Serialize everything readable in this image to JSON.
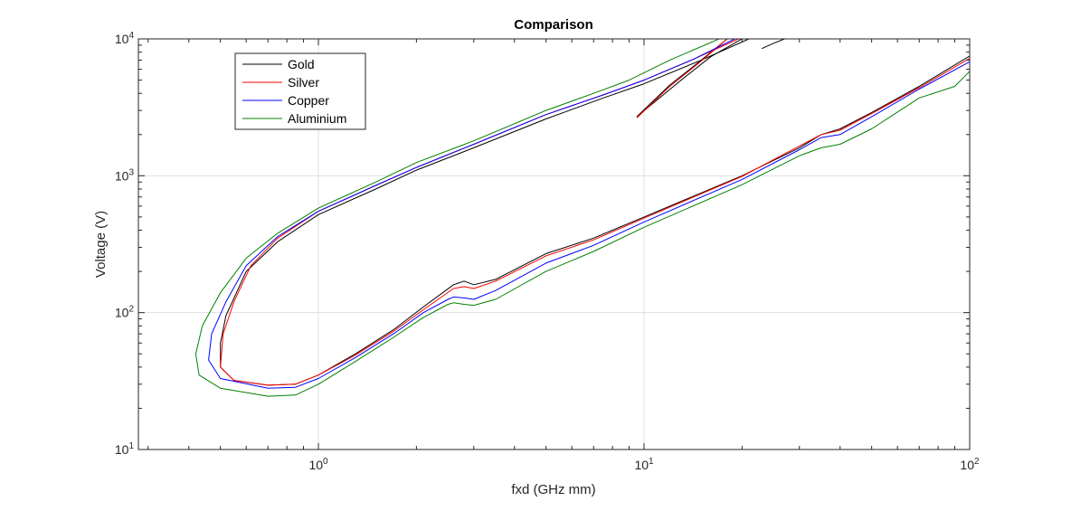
{
  "chart_data": {
    "type": "line",
    "title": "Comparison",
    "xlabel": "fxd (GHz mm)",
    "ylabel": "Voltage (V)",
    "xscale": "log",
    "yscale": "log",
    "xlim": [
      0.28,
      100
    ],
    "ylim": [
      10,
      10000
    ],
    "grid": true,
    "legend_position": "top-left",
    "x_ticks": [
      {
        "value": 1,
        "base": "10",
        "exp": "0"
      },
      {
        "value": 10,
        "base": "10",
        "exp": "1"
      },
      {
        "value": 100,
        "base": "10",
        "exp": "2"
      }
    ],
    "y_ticks": [
      {
        "value": 10,
        "base": "10",
        "exp": "1"
      },
      {
        "value": 100,
        "base": "10",
        "exp": "2"
      },
      {
        "value": 1000,
        "base": "10",
        "exp": "3"
      },
      {
        "value": 10000,
        "base": "10",
        "exp": "4"
      }
    ],
    "series": [
      {
        "name": "Gold",
        "color": "#000000",
        "segments": [
          [
            [
              21,
              10000
            ],
            [
              15,
              7000
            ],
            [
              10,
              4700
            ],
            [
              7.5,
              3700
            ],
            [
              5,
              2600
            ],
            [
              3,
              1600
            ],
            [
              2,
              1100
            ],
            [
              1.5,
              800
            ],
            [
              1,
              520
            ],
            [
              0.75,
              330
            ],
            [
              0.6,
              200
            ],
            [
              0.52,
              95
            ],
            [
              0.5,
              60
            ],
            [
              0.5,
              40
            ],
            [
              0.55,
              32
            ],
            [
              0.7,
              29.5
            ],
            [
              0.85,
              30
            ],
            [
              1,
              35
            ],
            [
              1.3,
              50
            ],
            [
              1.7,
              75
            ],
            [
              2.1,
              110
            ],
            [
              2.6,
              160
            ],
            [
              2.8,
              170
            ],
            [
              3,
              160
            ],
            [
              3.5,
              175
            ],
            [
              5,
              270
            ],
            [
              7,
              350
            ],
            [
              10,
              500
            ],
            [
              20,
              1000
            ],
            [
              30,
              1600
            ],
            [
              35,
              2000
            ],
            [
              40,
              2200
            ],
            [
              50,
              2900
            ],
            [
              70,
              4500
            ],
            [
              100,
              7500
            ]
          ],
          [
            [
              9.5,
              2700
            ],
            [
              12,
              4600
            ],
            [
              15,
              7000
            ],
            [
              18,
              10000
            ]
          ],
          [
            [
              9.5,
              2700
            ],
            [
              11,
              3600
            ],
            [
              13,
              5000
            ],
            [
              16,
              7400
            ],
            [
              20,
              10000
            ]
          ],
          [
            [
              23,
              8500
            ],
            [
              25,
              9300
            ],
            [
              27,
              10000
            ]
          ]
        ]
      },
      {
        "name": "Silver",
        "color": "#ff0000",
        "segments": [
          [
            [
              19.5,
              10000
            ],
            [
              14,
              7000
            ],
            [
              10,
              5000
            ],
            [
              7.5,
              3900
            ],
            [
              5,
              2800
            ],
            [
              3,
              1700
            ],
            [
              2,
              1150
            ],
            [
              1.5,
              850
            ],
            [
              1,
              550
            ],
            [
              0.75,
              350
            ],
            [
              0.62,
              220
            ],
            [
              0.55,
              120
            ],
            [
              0.51,
              70
            ],
            [
              0.5,
              40
            ],
            [
              0.55,
              32
            ],
            [
              0.7,
              29.5
            ],
            [
              0.85,
              30
            ],
            [
              1,
              35
            ],
            [
              1.3,
              49
            ],
            [
              1.7,
              73
            ],
            [
              2.1,
              105
            ],
            [
              2.6,
              150
            ],
            [
              2.8,
              155
            ],
            [
              3,
              150
            ],
            [
              3.5,
              170
            ],
            [
              5,
              260
            ],
            [
              7,
              340
            ],
            [
              10,
              490
            ],
            [
              20,
              990
            ],
            [
              30,
              1650
            ],
            [
              35,
              2000
            ],
            [
              40,
              2150
            ],
            [
              50,
              2850
            ],
            [
              70,
              4400
            ],
            [
              100,
              7200
            ]
          ],
          [
            [
              9.5,
              2650
            ],
            [
              12,
              4500
            ],
            [
              15,
              6900
            ],
            [
              18,
              10000
            ]
          ]
        ]
      },
      {
        "name": "Copper",
        "color": "#0000ff",
        "segments": [
          [
            [
              19,
              10000
            ],
            [
              14,
              7000
            ],
            [
              10,
              5000
            ],
            [
              7.5,
              3900
            ],
            [
              5,
              2800
            ],
            [
              3,
              1700
            ],
            [
              2,
              1150
            ],
            [
              1.5,
              850
            ],
            [
              1,
              550
            ],
            [
              0.75,
              360
            ],
            [
              0.6,
              220
            ],
            [
              0.52,
              120
            ],
            [
              0.47,
              70
            ],
            [
              0.46,
              45
            ],
            [
              0.5,
              33
            ],
            [
              0.7,
              28
            ],
            [
              0.85,
              28.5
            ],
            [
              1,
              33
            ],
            [
              1.3,
              47
            ],
            [
              1.7,
              70
            ],
            [
              2.1,
              100
            ],
            [
              2.5,
              125
            ],
            [
              2.6,
              130
            ],
            [
              2.8,
              128
            ],
            [
              3,
              125
            ],
            [
              3.5,
              145
            ],
            [
              5,
              230
            ],
            [
              7,
              310
            ],
            [
              10,
              460
            ],
            [
              20,
              940
            ],
            [
              30,
              1550
            ],
            [
              35,
              1900
            ],
            [
              40,
              2000
            ],
            [
              50,
              2700
            ],
            [
              70,
              4300
            ],
            [
              100,
              6800
            ]
          ]
        ]
      },
      {
        "name": "Aluminium",
        "color": "#008000",
        "segments": [
          [
            [
              17,
              10000
            ],
            [
              12,
              7000
            ],
            [
              9,
              5000
            ],
            [
              7,
              4000
            ],
            [
              5,
              3000
            ],
            [
              3,
              1800
            ],
            [
              2,
              1250
            ],
            [
              1.5,
              900
            ],
            [
              1,
              580
            ],
            [
              0.75,
              380
            ],
            [
              0.6,
              250
            ],
            [
              0.5,
              140
            ],
            [
              0.44,
              80
            ],
            [
              0.42,
              50
            ],
            [
              0.43,
              35
            ],
            [
              0.5,
              28
            ],
            [
              0.7,
              24.5
            ],
            [
              0.85,
              25
            ],
            [
              1,
              30
            ],
            [
              1.3,
              44
            ],
            [
              1.7,
              66
            ],
            [
              2.1,
              92
            ],
            [
              2.5,
              115
            ],
            [
              2.6,
              118
            ],
            [
              2.8,
              115
            ],
            [
              3,
              113
            ],
            [
              3.5,
              125
            ],
            [
              5,
              200
            ],
            [
              7,
              280
            ],
            [
              10,
              420
            ],
            [
              20,
              860
            ],
            [
              30,
              1400
            ],
            [
              35,
              1600
            ],
            [
              40,
              1700
            ],
            [
              50,
              2200
            ],
            [
              70,
              3700
            ],
            [
              90,
              4500
            ],
            [
              100,
              5800
            ]
          ]
        ]
      }
    ]
  }
}
